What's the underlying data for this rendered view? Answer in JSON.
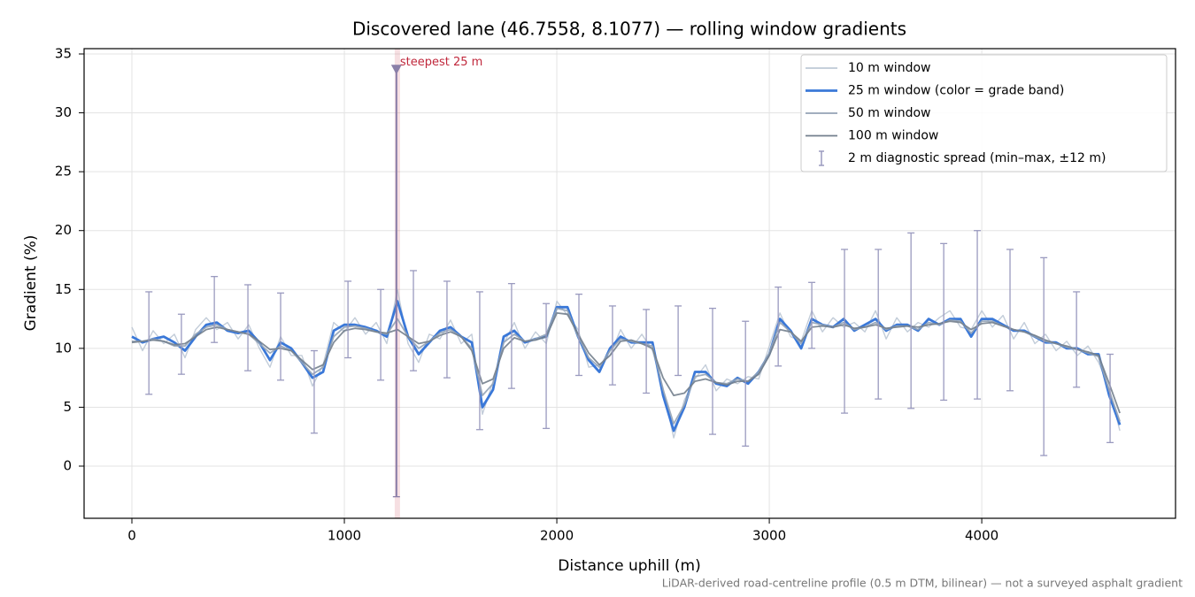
{
  "chart_data": {
    "type": "line",
    "title": "Discovered lane (46.7558, 8.1077) — rolling window gradients",
    "x_label": "Distance uphill (m)",
    "y_label": "Gradient (%)",
    "note": "LiDAR-derived road-centreline profile (0.5 m DTM, bilinear) — not a surveyed asphalt gradient",
    "xlim": [
      -225,
      4912
    ],
    "ylim": [
      -4.43,
      35.45
    ],
    "xticks": [
      0,
      1000,
      2000,
      3000,
      4000
    ],
    "yticks": [
      0,
      5,
      10,
      15,
      20,
      25,
      30,
      35
    ],
    "grid": true,
    "legend": "upper right",
    "x": [
      0,
      50,
      100,
      150,
      200,
      250,
      300,
      350,
      400,
      450,
      500,
      550,
      600,
      650,
      700,
      750,
      800,
      850,
      900,
      950,
      1000,
      1050,
      1100,
      1150,
      1200,
      1250,
      1300,
      1350,
      1400,
      1450,
      1500,
      1550,
      1600,
      1650,
      1700,
      1750,
      1800,
      1850,
      1900,
      1950,
      2000,
      2050,
      2100,
      2150,
      2200,
      2250,
      2300,
      2350,
      2400,
      2450,
      2500,
      2550,
      2600,
      2650,
      2700,
      2750,
      2800,
      2850,
      2900,
      2950,
      3000,
      3050,
      3100,
      3150,
      3200,
      3250,
      3300,
      3350,
      3400,
      3450,
      3500,
      3550,
      3600,
      3650,
      3700,
      3750,
      3800,
      3850,
      3900,
      3950,
      4000,
      4050,
      4100,
      4150,
      4200,
      4250,
      4300,
      4350,
      4400,
      4450,
      4500,
      4550,
      4600,
      4650
    ],
    "series": [
      {
        "name": "10 m window",
        "color": "#b4c0cf",
        "values": [
          11.8,
          9.8,
          11.5,
          10.4,
          11.2,
          9.2,
          11.6,
          12.6,
          11.6,
          12.2,
          10.8,
          12,
          10,
          8.4,
          11,
          9.4,
          9.4,
          6.8,
          8.6,
          12.2,
          11.4,
          12.6,
          11.2,
          12.2,
          10.4,
          15,
          10.4,
          8.8,
          11.2,
          10.8,
          12.4,
          10.4,
          11.2,
          4.4,
          7.2,
          10.4,
          12.2,
          10,
          11.4,
          10.4,
          14,
          12.8,
          11.6,
          8.4,
          8.6,
          9.4,
          11.6,
          10,
          11.2,
          9.8,
          6.6,
          2.4,
          5.6,
          7.4,
          8.6,
          6.4,
          7.4,
          7,
          7.6,
          7.4,
          10.2,
          13,
          11,
          10.6,
          13.2,
          11.4,
          12.6,
          11.8,
          12.2,
          11.4,
          13.2,
          10.8,
          12.6,
          11.4,
          12.2,
          11.8,
          12.6,
          13.2,
          11.8,
          11.6,
          13.2,
          11.8,
          12.8,
          10.8,
          12.2,
          10.4,
          11.2,
          9.8,
          10.6,
          9.4,
          10.2,
          8.8,
          6.6,
          3
        ]
      },
      {
        "name": "25 m window (color = grade band)",
        "color": "#3a78d8",
        "values": [
          11,
          10.5,
          10.8,
          11,
          10.5,
          9.8,
          11,
          12,
          12.2,
          11.5,
          11.3,
          11.5,
          10.5,
          9,
          10.5,
          10,
          8.8,
          7.5,
          8,
          11.5,
          12,
          12,
          11.8,
          11.5,
          11,
          14,
          11,
          9.5,
          10.5,
          11.5,
          11.8,
          11,
          10.5,
          5,
          6.5,
          11,
          11.5,
          10.5,
          10.8,
          11,
          13.5,
          13.5,
          11,
          9,
          8,
          10,
          11,
          10.5,
          10.5,
          10.5,
          6,
          3,
          5,
          8,
          8,
          7,
          6.8,
          7.5,
          7,
          8,
          9.5,
          12.5,
          11.5,
          10,
          12.5,
          12,
          11.8,
          12.5,
          11.5,
          12,
          12.5,
          11.5,
          12,
          12,
          11.5,
          12.5,
          12,
          12.5,
          12.5,
          11,
          12.5,
          12.5,
          12,
          11.5,
          11.5,
          11,
          10.5,
          10.5,
          10,
          10,
          9.5,
          9.5,
          6,
          3.5
        ]
      },
      {
        "name": "50 m window",
        "color": "#94a3b6",
        "values": [
          10.6,
          10.6,
          10.8,
          10.6,
          10.2,
          10.2,
          11.2,
          11.8,
          12,
          11.6,
          11.4,
          11.2,
          10.4,
          9.6,
          10.2,
          9.8,
          8.8,
          7.8,
          8.4,
          11,
          11.8,
          11.9,
          11.7,
          11.4,
          11.2,
          12.5,
          11,
          10,
          10.6,
          11.3,
          11.6,
          11,
          10,
          6,
          7,
          10.5,
          11.2,
          10.6,
          10.8,
          11.2,
          13.4,
          13.2,
          11,
          9.2,
          8.4,
          9.8,
          10.8,
          10.6,
          10.4,
          10.2,
          6.5,
          3.6,
          5.2,
          7.6,
          7.8,
          7.1,
          7,
          7.4,
          7.2,
          8,
          9.6,
          12.2,
          11.4,
          10.4,
          12.2,
          12,
          11.8,
          12.2,
          11.6,
          11.8,
          12.2,
          11.6,
          11.9,
          11.9,
          11.6,
          12.2,
          12,
          12.4,
          12.3,
          11.3,
          12.3,
          12.3,
          11.9,
          11.6,
          11.4,
          11,
          10.6,
          10.4,
          10.1,
          9.9,
          9.6,
          9.3,
          6.4,
          3.8
        ]
      },
      {
        "name": "100 m window",
        "color": "#737f8d",
        "values": [
          10.5,
          10.6,
          10.7,
          10.6,
          10.3,
          10.4,
          11,
          11.6,
          11.8,
          11.6,
          11.4,
          11.2,
          10.6,
          9.9,
          10,
          9.8,
          9,
          8.2,
          8.6,
          10.5,
          11.5,
          11.7,
          11.6,
          11.4,
          11.3,
          11.6,
          11,
          10.4,
          10.6,
          11.1,
          11.4,
          11,
          9.8,
          7,
          7.4,
          10,
          10.9,
          10.6,
          10.7,
          11,
          13,
          12.9,
          11.2,
          9.6,
          8.6,
          9.4,
          10.6,
          10.7,
          10.4,
          10,
          7.5,
          6,
          6.2,
          7.2,
          7.4,
          7.1,
          6.9,
          7.2,
          7.2,
          7.8,
          9.4,
          11.6,
          11.4,
          10.6,
          11.8,
          11.9,
          11.8,
          12,
          11.7,
          11.8,
          12,
          11.7,
          11.8,
          11.9,
          11.8,
          12,
          12.1,
          12.3,
          12.2,
          11.6,
          12.1,
          12.2,
          11.9,
          11.6,
          11.4,
          11.1,
          10.7,
          10.4,
          10.2,
          9.9,
          9.7,
          9.4,
          7,
          4.5
        ]
      }
    ],
    "errorbars": {
      "name": "2 m diagnostic spread (min–max, ±12 m)",
      "color": "#9a9abf",
      "x": [
        80,
        233,
        388,
        546,
        700,
        858,
        1017,
        1171,
        1325,
        1483,
        1637,
        1787,
        1950,
        2104,
        2262,
        2421,
        2571,
        2733,
        2888,
        3042,
        3200,
        3354,
        3513,
        3667,
        3821,
        3979,
        4133,
        4292,
        4446,
        4604
      ],
      "low": [
        6.1,
        7.8,
        10.5,
        8.1,
        7.3,
        2.8,
        9.2,
        7.3,
        8.1,
        7.5,
        3.1,
        6.6,
        3.2,
        7.7,
        6.9,
        6.2,
        7.7,
        2.7,
        1.7,
        8.5,
        10,
        4.5,
        5.7,
        4.9,
        5.6,
        5.7,
        6.4,
        0.9,
        6.7,
        2
      ],
      "high": [
        14.8,
        12.9,
        16.1,
        15.4,
        14.7,
        9.8,
        15.7,
        15,
        16.6,
        15.7,
        14.8,
        15.5,
        13.8,
        14.6,
        13.6,
        13.3,
        13.6,
        13.4,
        12.3,
        15.2,
        15.6,
        18.4,
        18.4,
        19.8,
        18.9,
        20,
        18.4,
        17.7,
        14.8,
        9.5
      ]
    },
    "annotation": {
      "text": "steepest 25 m",
      "color": "#c0283c",
      "marker_color": "#8a7fa8",
      "x": 1245,
      "low": -2.6,
      "high": 33.7,
      "span": [
        1237,
        1262
      ]
    }
  }
}
